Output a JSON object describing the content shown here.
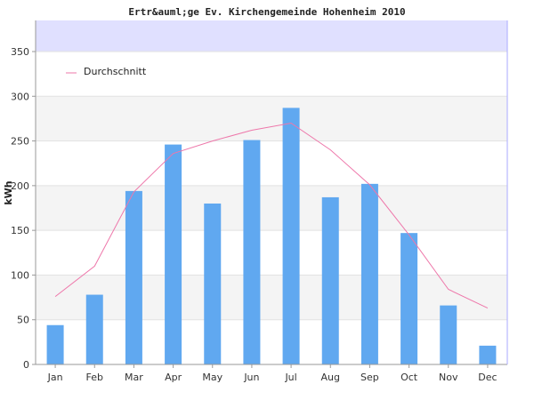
{
  "chart_data": {
    "type": "bar",
    "title": "Ertr&auml;ge Ev. Kirchengemeinde Hohenheim 2010",
    "xlabel": "",
    "ylabel": "kWh",
    "ylim": [
      0,
      350
    ],
    "yticks": [
      0,
      50,
      100,
      150,
      200,
      250,
      300,
      350
    ],
    "categories": [
      "Jan",
      "Feb",
      "Mar",
      "Apr",
      "May",
      "Jun",
      "Jul",
      "Aug",
      "Sep",
      "Oct",
      "Nov",
      "Dec"
    ],
    "series": [
      {
        "name": "",
        "kind": "bar",
        "color": "#60a8f0",
        "values": [
          44,
          78,
          194,
          246,
          180,
          251,
          287,
          187,
          202,
          147,
          66,
          21
        ]
      },
      {
        "name": "Durchschnitt",
        "kind": "line",
        "color": "#ee77aa",
        "values": [
          76,
          110,
          193,
          236,
          250,
          262,
          270,
          240,
          201,
          145,
          84,
          63
        ]
      }
    ],
    "legend_position": "top-left",
    "grid": true,
    "band_colors": [
      "#ffffff",
      "#f4f4f4"
    ],
    "top_band_color": "#e0e0ff"
  }
}
